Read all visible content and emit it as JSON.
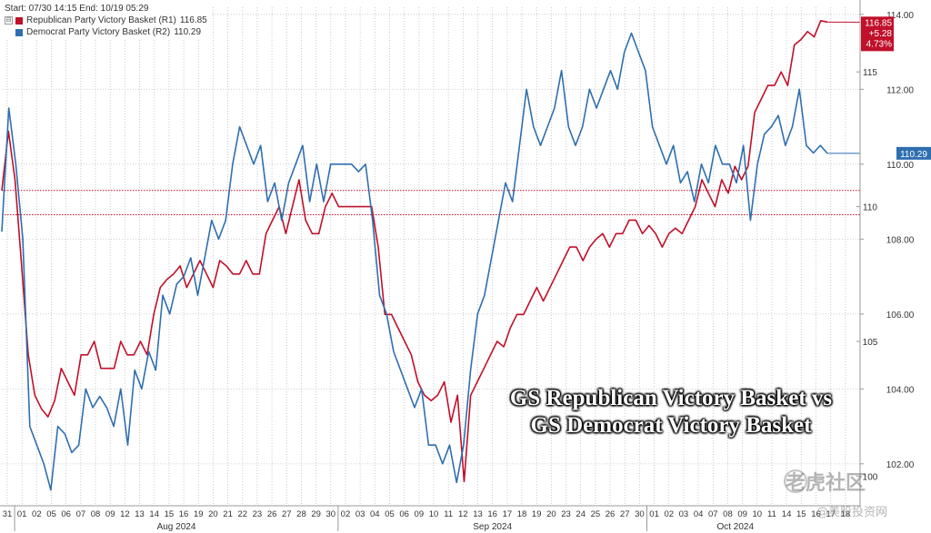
{
  "legend": {
    "range_text": "Start: 07/30 14:15 End: 10/19 05:29",
    "toggle": "⊟",
    "series": [
      {
        "label": "Republican Party Victory Basket (R1)",
        "value": "116.85",
        "color": "#c0102a"
      },
      {
        "label": "Democrat Party Victory Basket (R2)",
        "value": "110.29",
        "color": "#2f6fb0"
      }
    ]
  },
  "overlay": {
    "line1": "GS Republican Victory Basket vs",
    "line2": "GS Democrat Victory Basket"
  },
  "watermark": {
    "line1": "老虎社区",
    "line2": "@美股投资网"
  },
  "chart_data": {
    "type": "line",
    "x_tick_labels": [
      "31",
      "01",
      "02",
      "05",
      "06",
      "07",
      "08",
      "09",
      "12",
      "13",
      "14",
      "15",
      "16",
      "19",
      "20",
      "21",
      "22",
      "23",
      "26",
      "27",
      "28",
      "29",
      "30",
      "02",
      "03",
      "04",
      "05",
      "06",
      "09",
      "10",
      "11",
      "12",
      "13",
      "16",
      "17",
      "18",
      "19",
      "20",
      "23",
      "24",
      "25",
      "26",
      "27",
      "30",
      "01",
      "02",
      "03",
      "04",
      "07",
      "08",
      "09",
      "10",
      "11",
      "14",
      "15",
      "16",
      "17",
      "18"
    ],
    "month_labels": [
      "Aug 2024",
      "Sep 2024",
      "Oct 2024"
    ],
    "left_axis": {
      "ticks": [
        100,
        105,
        110,
        115
      ],
      "label_color": "#c0102a"
    },
    "right_axis": {
      "ticks": [
        "102.00",
        "104.00",
        "106.00",
        "108.00",
        "110.00",
        "112.00",
        "114.00"
      ]
    },
    "y_left_range": [
      98.9,
      117.4
    ],
    "y_right_range": [
      100.88,
      114.19
    ],
    "reference_lines": {
      "left": [
        110.6,
        109.7
      ]
    },
    "series": [
      {
        "name": "Republican Party Victory Basket (R1)",
        "axis": "left",
        "color": "#c0102a",
        "last_value": "116.85",
        "last_labels": [
          "116.85",
          "+5.28",
          "4.73%"
        ],
        "values": [
          110.6,
          112.8,
          111.0,
          107.8,
          104.5,
          103.0,
          102.5,
          102.2,
          102.8,
          104.0,
          103.5,
          103.0,
          104.5,
          104.5,
          105.0,
          104.0,
          104.0,
          104.0,
          105.0,
          104.5,
          104.5,
          105.0,
          104.5,
          106.0,
          107.0,
          107.3,
          107.5,
          107.8,
          107.0,
          107.5,
          108.0,
          107.5,
          107.0,
          108.0,
          107.8,
          107.5,
          107.5,
          108.0,
          107.5,
          107.5,
          109.0,
          109.5,
          110.0,
          109.0,
          110.0,
          111.0,
          109.5,
          109.0,
          109.0,
          110.0,
          110.5,
          110.0,
          110.0,
          110.0,
          110.0,
          110.0,
          110.0,
          108.5,
          106.0,
          106.0,
          105.5,
          105.0,
          104.5,
          103.5,
          103.0,
          102.8,
          103.0,
          103.5,
          102.0,
          103.0,
          99.8,
          103.0,
          103.5,
          104.0,
          104.5,
          105.0,
          104.8,
          105.5,
          106.0,
          106.0,
          106.5,
          107.0,
          106.5,
          107.0,
          107.5,
          108.0,
          108.5,
          108.5,
          108.0,
          108.5,
          108.8,
          109.0,
          108.5,
          109.0,
          109.0,
          109.5,
          109.5,
          109.0,
          109.3,
          109.0,
          108.5,
          109.0,
          109.2,
          109.0,
          109.5,
          110.0,
          111.0,
          110.5,
          110.0,
          111.0,
          110.5,
          111.5,
          111.0,
          111.5,
          113.5,
          114.0,
          114.5,
          114.5,
          115.0,
          114.5,
          116.0,
          116.2,
          116.5,
          116.3,
          116.9,
          116.85
        ]
      },
      {
        "name": "Democrat Party Victory Basket (R2)",
        "axis": "right",
        "color": "#2f6fb0",
        "last_value": "110.29",
        "values": [
          108.2,
          111.5,
          110.0,
          108.0,
          103.0,
          102.5,
          102.0,
          101.3,
          103.0,
          102.8,
          102.3,
          102.5,
          104.0,
          103.5,
          103.8,
          103.5,
          103.0,
          104.0,
          102.5,
          104.5,
          104.0,
          105.0,
          104.5,
          106.5,
          106.0,
          106.8,
          107.0,
          107.5,
          106.5,
          107.5,
          108.5,
          108.0,
          108.5,
          110.0,
          111.0,
          110.5,
          110.0,
          110.5,
          109.0,
          109.5,
          108.5,
          109.5,
          110.0,
          110.5,
          109.0,
          110.0,
          109.0,
          110.0,
          110.0,
          110.0,
          110.0,
          109.8,
          110.0,
          108.5,
          106.5,
          106.0,
          105.0,
          104.5,
          104.0,
          103.5,
          104.0,
          102.5,
          102.5,
          102.0,
          102.5,
          101.5,
          102.5,
          104.5,
          106.0,
          106.5,
          107.5,
          108.5,
          109.5,
          109.0,
          110.5,
          112.0,
          111.0,
          110.5,
          111.0,
          111.5,
          112.5,
          111.0,
          110.5,
          111.0,
          112.0,
          111.5,
          112.0,
          112.5,
          112.0,
          113.0,
          113.5,
          113.0,
          112.5,
          111.0,
          110.5,
          110.0,
          110.5,
          109.5,
          109.8,
          109.0,
          110.0,
          109.5,
          110.5,
          110.0,
          110.0,
          109.5,
          110.5,
          108.5,
          110.0,
          110.8,
          111.0,
          111.3,
          110.5,
          111.0,
          112.0,
          110.5,
          110.3,
          110.5,
          110.29
        ]
      }
    ]
  }
}
